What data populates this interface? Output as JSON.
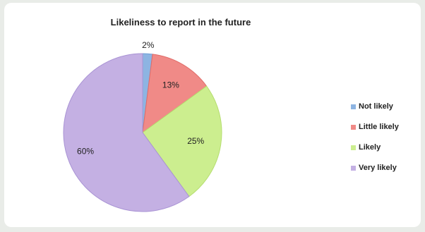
{
  "chart_data": {
    "type": "pie",
    "title": "Likeliness to report  in the future",
    "categories": [
      "Not likely",
      "Little likely",
      "Likely",
      "Very likely"
    ],
    "values": [
      2,
      13,
      25,
      60
    ],
    "data_labels": [
      "2%",
      "13%",
      "25%",
      "60%"
    ],
    "colors": [
      "#8db4e2",
      "#f08a87",
      "#ccee8f",
      "#c4b0e3"
    ],
    "slice_borders": [
      "#6f9fd6",
      "#e06b68",
      "#b5dd6f",
      "#a993d4"
    ],
    "legend_position": "right"
  }
}
